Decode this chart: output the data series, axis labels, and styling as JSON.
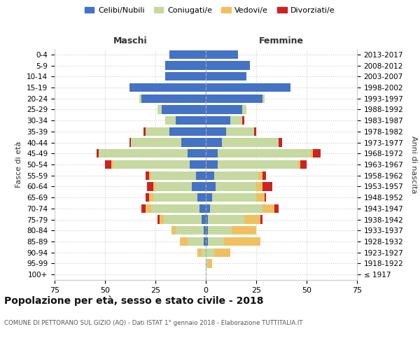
{
  "age_groups": [
    "100+",
    "95-99",
    "90-94",
    "85-89",
    "80-84",
    "75-79",
    "70-74",
    "65-69",
    "60-64",
    "55-59",
    "50-54",
    "45-49",
    "40-44",
    "35-39",
    "30-34",
    "25-29",
    "20-24",
    "15-19",
    "10-14",
    "5-9",
    "0-4"
  ],
  "birth_years": [
    "≤ 1917",
    "1918-1922",
    "1923-1927",
    "1928-1932",
    "1933-1937",
    "1938-1942",
    "1943-1947",
    "1948-1952",
    "1953-1957",
    "1958-1962",
    "1963-1967",
    "1968-1972",
    "1973-1977",
    "1978-1982",
    "1983-1987",
    "1988-1992",
    "1993-1997",
    "1998-2002",
    "2003-2007",
    "2008-2012",
    "2013-2017"
  ],
  "colors": {
    "celibe": "#4472c4",
    "coniugato": "#c5d9a0",
    "vedovo": "#f0c060",
    "divorziato": "#cc2222"
  },
  "male": {
    "celibe": [
      0,
      0,
      0,
      1,
      1,
      2,
      3,
      4,
      7,
      5,
      8,
      9,
      12,
      18,
      15,
      22,
      32,
      38,
      20,
      20,
      18
    ],
    "coniugato": [
      0,
      0,
      2,
      8,
      14,
      19,
      24,
      22,
      18,
      22,
      38,
      44,
      25,
      12,
      5,
      2,
      1,
      0,
      0,
      0,
      0
    ],
    "vedovo": [
      0,
      0,
      2,
      4,
      2,
      2,
      3,
      2,
      1,
      1,
      1,
      0,
      0,
      0,
      0,
      0,
      0,
      0,
      0,
      0,
      0
    ],
    "divorziato": [
      0,
      0,
      0,
      0,
      0,
      1,
      2,
      2,
      3,
      2,
      3,
      1,
      1,
      1,
      0,
      0,
      0,
      0,
      0,
      0,
      0
    ]
  },
  "female": {
    "nubile": [
      0,
      0,
      0,
      1,
      1,
      1,
      2,
      3,
      5,
      4,
      6,
      6,
      8,
      10,
      12,
      18,
      28,
      42,
      20,
      22,
      16
    ],
    "coniugata": [
      0,
      1,
      4,
      8,
      12,
      18,
      26,
      22,
      20,
      22,
      40,
      46,
      28,
      14,
      6,
      2,
      1,
      0,
      0,
      0,
      0
    ],
    "vedova": [
      0,
      2,
      8,
      18,
      12,
      8,
      6,
      4,
      3,
      2,
      1,
      1,
      0,
      0,
      0,
      0,
      0,
      0,
      0,
      0,
      0
    ],
    "divorziata": [
      0,
      0,
      0,
      0,
      0,
      1,
      2,
      1,
      5,
      2,
      3,
      4,
      2,
      1,
      1,
      0,
      0,
      0,
      0,
      0,
      0
    ]
  },
  "xlim": 75,
  "title": "Popolazione per età, sesso e stato civile - 2018",
  "subtitle": "COMUNE DI PETTORANO SUL GIZIO (AQ) - Dati ISTAT 1° gennaio 2018 - Elaborazione TUTTITALIA.IT",
  "ylabel_left": "Fasce di età",
  "ylabel_right": "Anni di nascita",
  "label_maschi": "Maschi",
  "label_femmine": "Femmine",
  "legend_labels": [
    "Celibi/Nubili",
    "Coniugati/e",
    "Vedovi/e",
    "Divorziati/e"
  ],
  "bg_color": "#ffffff"
}
